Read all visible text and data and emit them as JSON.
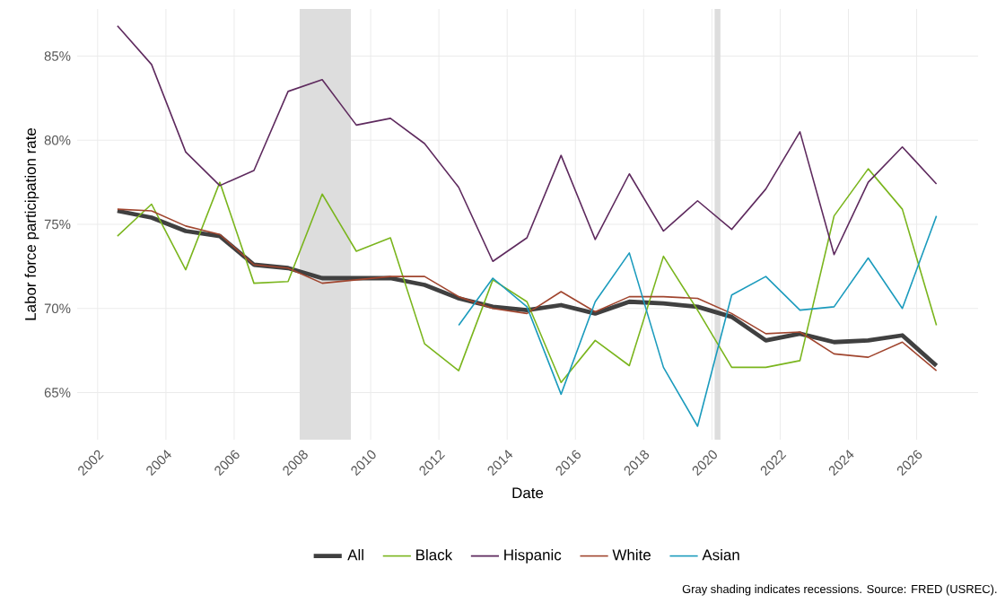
{
  "chart_data": {
    "type": "line",
    "xlabel": "Date",
    "ylabel": "Labor force participation rate",
    "annotations": [
      "Gray shading indicates recessions. Source: FRED (USREC)."
    ],
    "x": [
      2002.58,
      2003.58,
      2004.58,
      2005.58,
      2006.58,
      2007.58,
      2008.58,
      2009.58,
      2010.58,
      2011.58,
      2012.58,
      2013.58,
      2014.58,
      2015.58,
      2016.58,
      2017.58,
      2018.58,
      2019.58,
      2020.58,
      2021.58,
      2022.58,
      2023.58,
      2024.58,
      2025.58,
      2026.58
    ],
    "series": [
      {
        "name": "All",
        "color": "#404040",
        "values": [
          75.8,
          75.4,
          74.6,
          74.3,
          72.6,
          72.4,
          71.8,
          71.8,
          71.8,
          71.4,
          70.6,
          70.1,
          69.9,
          70.2,
          69.7,
          70.4,
          70.3,
          70.1,
          69.5,
          68.1,
          68.5,
          68.0,
          68.1,
          68.4,
          66.6
        ]
      },
      {
        "name": "Black",
        "color": "#7ab51d",
        "values": [
          74.3,
          76.2,
          72.3,
          77.5,
          71.5,
          71.6,
          76.8,
          73.4,
          74.2,
          67.9,
          66.3,
          71.7,
          70.4,
          65.6,
          68.1,
          66.6,
          73.1,
          69.9,
          66.5,
          66.5,
          66.9,
          75.5,
          78.3,
          75.9,
          69.0
        ]
      },
      {
        "name": "Hispanic",
        "color": "#5e2a5e",
        "values": [
          86.8,
          84.5,
          79.3,
          77.3,
          78.2,
          82.9,
          83.6,
          80.9,
          81.3,
          79.8,
          77.2,
          72.8,
          74.2,
          79.1,
          74.1,
          78.0,
          74.6,
          76.4,
          74.7,
          77.1,
          80.5,
          73.2,
          77.5,
          79.6,
          77.4
        ]
      },
      {
        "name": "White",
        "color": "#a0452e",
        "values": [
          75.9,
          75.8,
          74.9,
          74.4,
          72.6,
          72.4,
          71.5,
          71.7,
          71.9,
          71.9,
          70.7,
          70.0,
          69.7,
          71.0,
          69.8,
          70.7,
          70.7,
          70.6,
          69.7,
          68.5,
          68.6,
          67.3,
          67.1,
          68.0,
          66.3
        ]
      },
      {
        "name": "Asian",
        "color": "#1b9bbd",
        "values": [
          null,
          null,
          null,
          null,
          null,
          null,
          null,
          null,
          null,
          null,
          69.0,
          71.8,
          70.1,
          64.9,
          70.4,
          73.3,
          66.5,
          63.0,
          70.8,
          71.9,
          69.9,
          70.1,
          73.0,
          70.0,
          75.5
        ]
      }
    ],
    "xlim": [
      2001.4,
      2027.8
    ],
    "ylim": [
      62.2,
      87.8
    ],
    "xticks": [
      2002,
      2004,
      2006,
      2008,
      2010,
      2012,
      2014,
      2016,
      2018,
      2020,
      2022,
      2024,
      2026
    ],
    "yticks": [
      {
        "value": 65,
        "label": "65%"
      },
      {
        "value": 70,
        "label": "70%"
      },
      {
        "value": 75,
        "label": "75%"
      },
      {
        "value": 80,
        "label": "80%"
      },
      {
        "value": 85,
        "label": "85%"
      }
    ],
    "bands": [
      {
        "axis": "x",
        "from": 2007.92,
        "to": 2009.42,
        "color": "#dddddd"
      },
      {
        "axis": "x",
        "from": 2020.08,
        "to": 2020.25,
        "color": "#dddddd"
      }
    ],
    "grid": true,
    "legend": "bottom",
    "marker": "none",
    "line_style": "solid"
  }
}
